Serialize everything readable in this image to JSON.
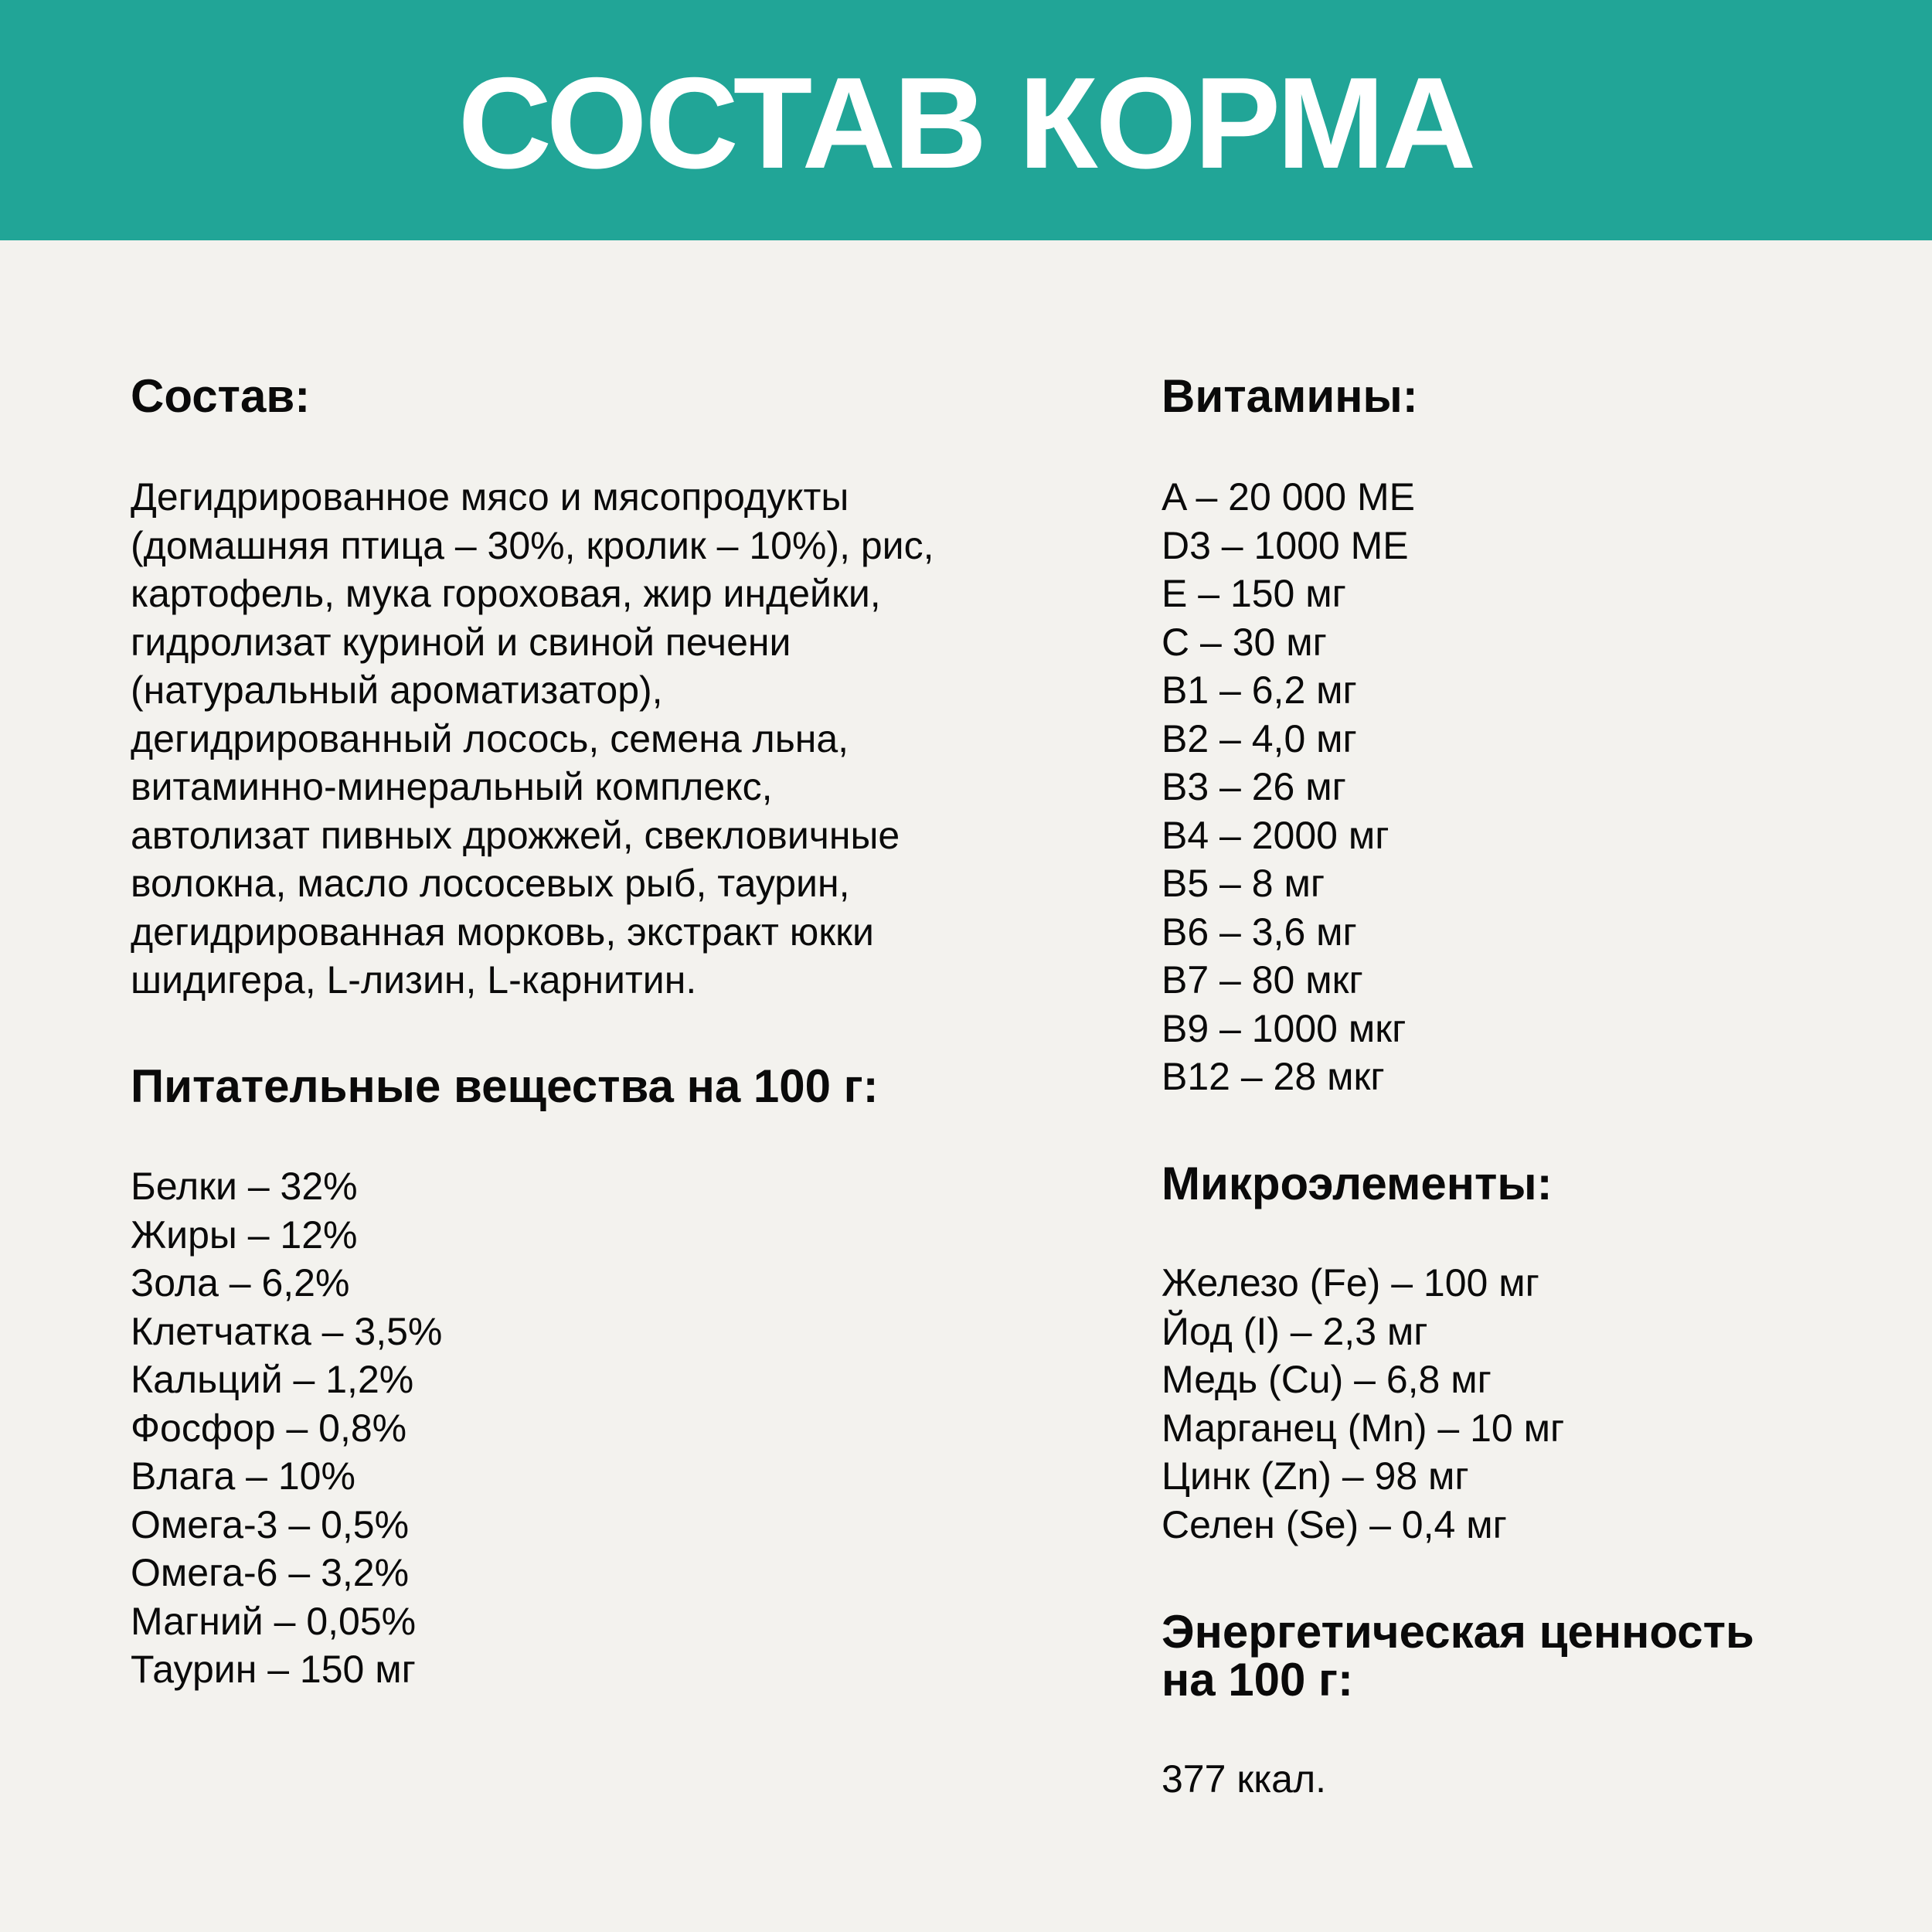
{
  "title": "СОСТАВ КОРМА",
  "colors": {
    "header": "#21a597",
    "background": "#f3f2ee",
    "text": "#0a0a0a"
  },
  "composition": {
    "heading": "Состав:",
    "lines": [
      "Дегидрированное мясо и мясопродукты",
      "(домашняя птица – 30%, кролик – 10%), рис,",
      "картофель, мука гороховая, жир индейки,",
      "гидролизат куриной и свиной печени",
      "(натуральный ароматизатор),",
      "дегидрированный лосось, семена льна,",
      "витаминно-минеральный комплекс,",
      "автолизат пивных дрожжей, свекловичные",
      "волокна, масло лососевых рыб, таурин,",
      "дегидрированная морковь, экстракт юкки",
      "шидигера, L-лизин, L-карнитин."
    ]
  },
  "nutrients": {
    "heading": "Питательные вещества на 100 г:",
    "items": [
      "Белки – 32%",
      "Жиры – 12%",
      "Зола – 6,2%",
      "Клетчатка – 3,5%",
      "Кальций – 1,2%",
      "Фосфор – 0,8%",
      "Влага – 10%",
      "Омега-3 – 0,5%",
      "Омега-6 – 3,2%",
      "Магний – 0,05%",
      "Таурин – 150 мг"
    ]
  },
  "vitamins": {
    "heading": "Витамины:",
    "items": [
      "A – 20 000 МЕ",
      "D3 – 1000 МЕ",
      "E – 150 мг",
      "C – 30 мг",
      "B1 – 6,2 мг",
      "B2 – 4,0 мг",
      "B3 – 26 мг",
      "B4 – 2000 мг",
      "B5 – 8 мг",
      "B6 – 3,6 мг",
      "B7 – 80 мкг",
      "B9 – 1000 мкг",
      "B12 – 28 мкг"
    ]
  },
  "minerals": {
    "heading": "Микроэлементы:",
    "items": [
      "Железо (Fe) – 100 мг",
      "Йод (I) – 2,3 мг",
      "Медь (Cu) – 6,8 мг",
      "Марганец (Mn) – 10 мг",
      "Цинк (Zn) – 98 мг",
      "Селен (Se) – 0,4 мг"
    ]
  },
  "energy": {
    "heading_line1": "Энергетическая ценность",
    "heading_line2": "на 100 г:",
    "value": "377 ккал."
  }
}
